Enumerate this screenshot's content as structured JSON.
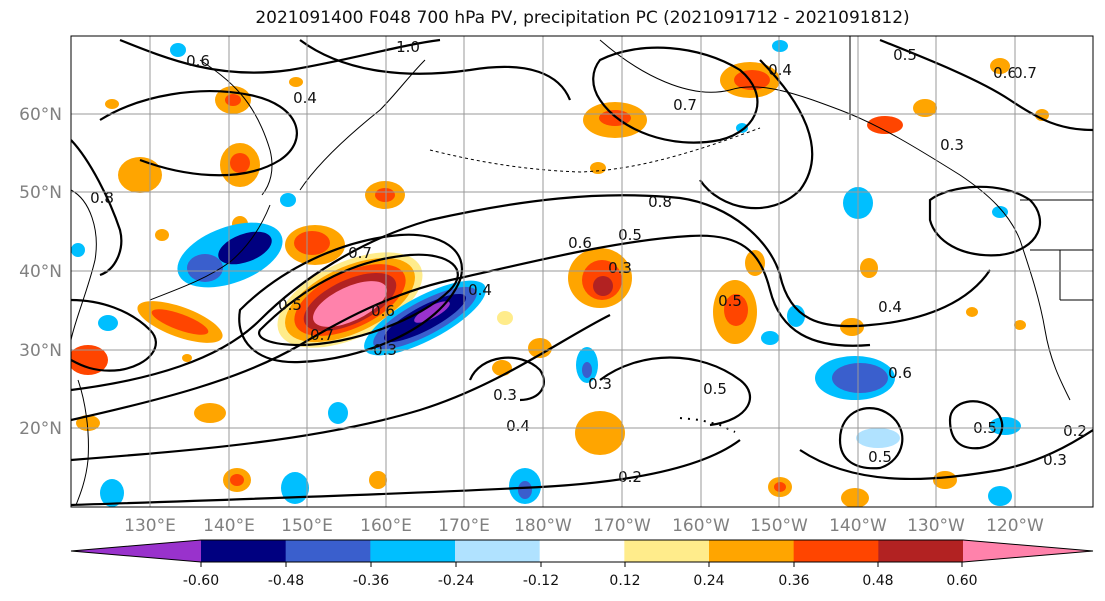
{
  "title": "2021091400 F048 700 hPa PV, precipitation PC (2021091712 - 2021091812)",
  "map": {
    "latitude_labels": [
      "60°N",
      "50°N",
      "40°N",
      "30°N",
      "20°N"
    ],
    "longitude_labels": [
      "130°E",
      "140°E",
      "150°E",
      "160°E",
      "170°E",
      "180°W",
      "170°W",
      "160°W",
      "150°W",
      "140°W",
      "130°W",
      "120°W"
    ],
    "pv_contour_labels": [
      "1.0",
      "0.6",
      "0.4",
      "0.7",
      "0.5",
      "0.4",
      "0.3",
      "0.6",
      "0.7",
      "0.8",
      "0.6",
      "0.5",
      "0.3",
      "0.4",
      "0.5",
      "0.3",
      "0.4",
      "0.3",
      "0.2",
      "0.5",
      "0.6",
      "0.5",
      "0.5",
      "0.2",
      "0.3",
      "0.8",
      "0.5",
      "0.7",
      "0.3",
      "0.7",
      "0.6",
      "0.4"
    ]
  },
  "colorbar": {
    "tick_labels": [
      "-0.60",
      "-0.48",
      "-0.36",
      "-0.24",
      "-0.12",
      "0.12",
      "0.24",
      "0.36",
      "0.48",
      "0.60"
    ],
    "colors": [
      "#9932CC",
      "#000080",
      "#3A5FCD",
      "#00BFFF",
      "#B0E2FF",
      "#FFFFFF",
      "#FFEC8B",
      "#FFA500",
      "#FF4500",
      "#B22222",
      "#FF82AB"
    ]
  }
}
